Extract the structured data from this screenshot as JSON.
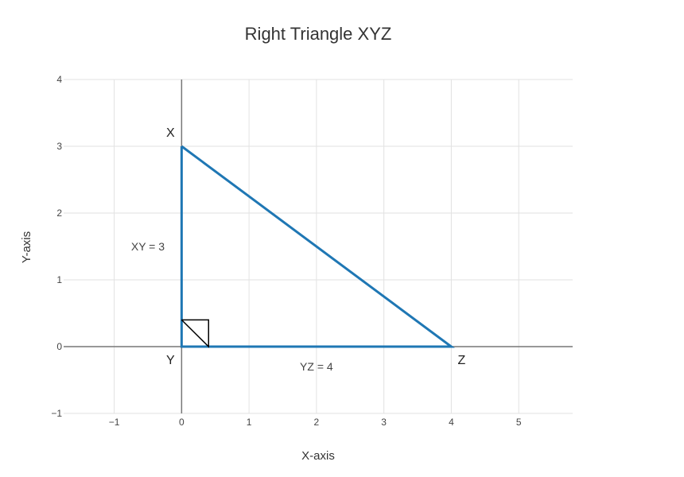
{
  "chart_data": {
    "type": "line",
    "title": "Right Triangle XYZ",
    "xlabel": "X-axis",
    "ylabel": "Y-axis",
    "xlim": [
      -1.75,
      5.8
    ],
    "ylim": [
      -1,
      4
    ],
    "x_ticks": [
      -1,
      0,
      1,
      2,
      3,
      4,
      5
    ],
    "x_tick_labels": [
      "−1",
      "0",
      "1",
      "2",
      "3",
      "4",
      "5"
    ],
    "y_ticks": [
      -1,
      0,
      1,
      2,
      3,
      4
    ],
    "y_tick_labels": [
      "−1",
      "0",
      "1",
      "2",
      "3",
      "4"
    ],
    "grid": true,
    "colors": {
      "series": "#1f77b4",
      "grid": "#e2e2e2",
      "zeroline": "#777777",
      "marker": "#000000"
    },
    "series": [
      {
        "x": [
          0,
          0,
          4,
          0
        ],
        "y": [
          3,
          0,
          0,
          3
        ]
      }
    ],
    "right_angle_marker": {
      "x": [
        0,
        0.4,
        0.4,
        0,
        0.4
      ],
      "y": [
        0.4,
        0.4,
        0,
        0.4,
        0
      ]
    },
    "points": [
      {
        "label": "X",
        "x": 0,
        "y": 3
      },
      {
        "label": "Y",
        "x": 0,
        "y": 0
      },
      {
        "label": "Z",
        "x": 4,
        "y": 0
      }
    ],
    "annotations": [
      {
        "text": "XY = 3",
        "x": -0.5,
        "y": 1.5
      },
      {
        "text": "YZ = 4",
        "x": 2,
        "y": -0.3
      }
    ]
  }
}
